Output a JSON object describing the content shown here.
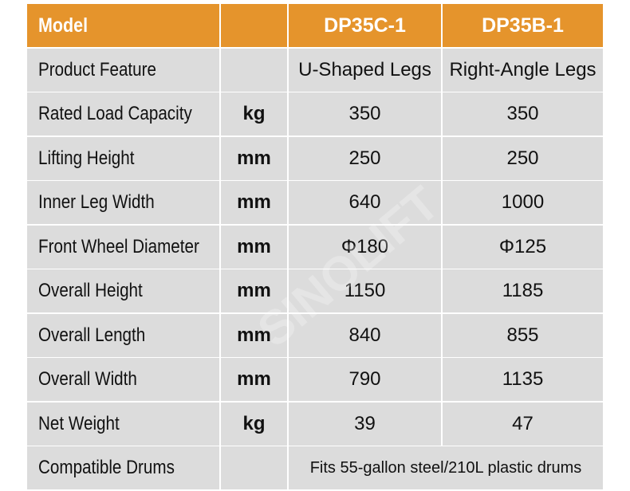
{
  "watermark": "SINOLIFT",
  "header": {
    "title": "Model",
    "columns": [
      "DP35C-1",
      "DP35B-1"
    ]
  },
  "rows": [
    {
      "label": "Product Feature",
      "values": [
        "U-Shaped Legs",
        "Right-Angle Legs"
      ]
    },
    {
      "label": "Rated Load Capacity",
      "unit": "kg",
      "values": [
        "350",
        "350"
      ]
    },
    {
      "label": "Lifting Height",
      "unit": "mm",
      "values": [
        "250",
        "250"
      ]
    },
    {
      "label": "Inner Leg Width",
      "unit": "mm",
      "values": [
        "640",
        "1000"
      ]
    },
    {
      "label": "Front Wheel Diameter",
      "unit": "mm",
      "values": [
        "Φ180",
        "Φ125"
      ]
    },
    {
      "label": "Overall Height",
      "unit": "mm",
      "values": [
        "1150",
        "1185"
      ]
    },
    {
      "label": "Overall Length",
      "unit": "mm",
      "values": [
        "840",
        "855"
      ]
    },
    {
      "label": "Overall Width",
      "unit": "mm",
      "values": [
        "790",
        "1135"
      ]
    },
    {
      "label": "Net Weight",
      "unit": "kg",
      "values": [
        "39",
        "47"
      ]
    },
    {
      "label": "Compatible Drums",
      "shared_value": "Fits 55-gallon steel/210L plastic drums"
    }
  ]
}
